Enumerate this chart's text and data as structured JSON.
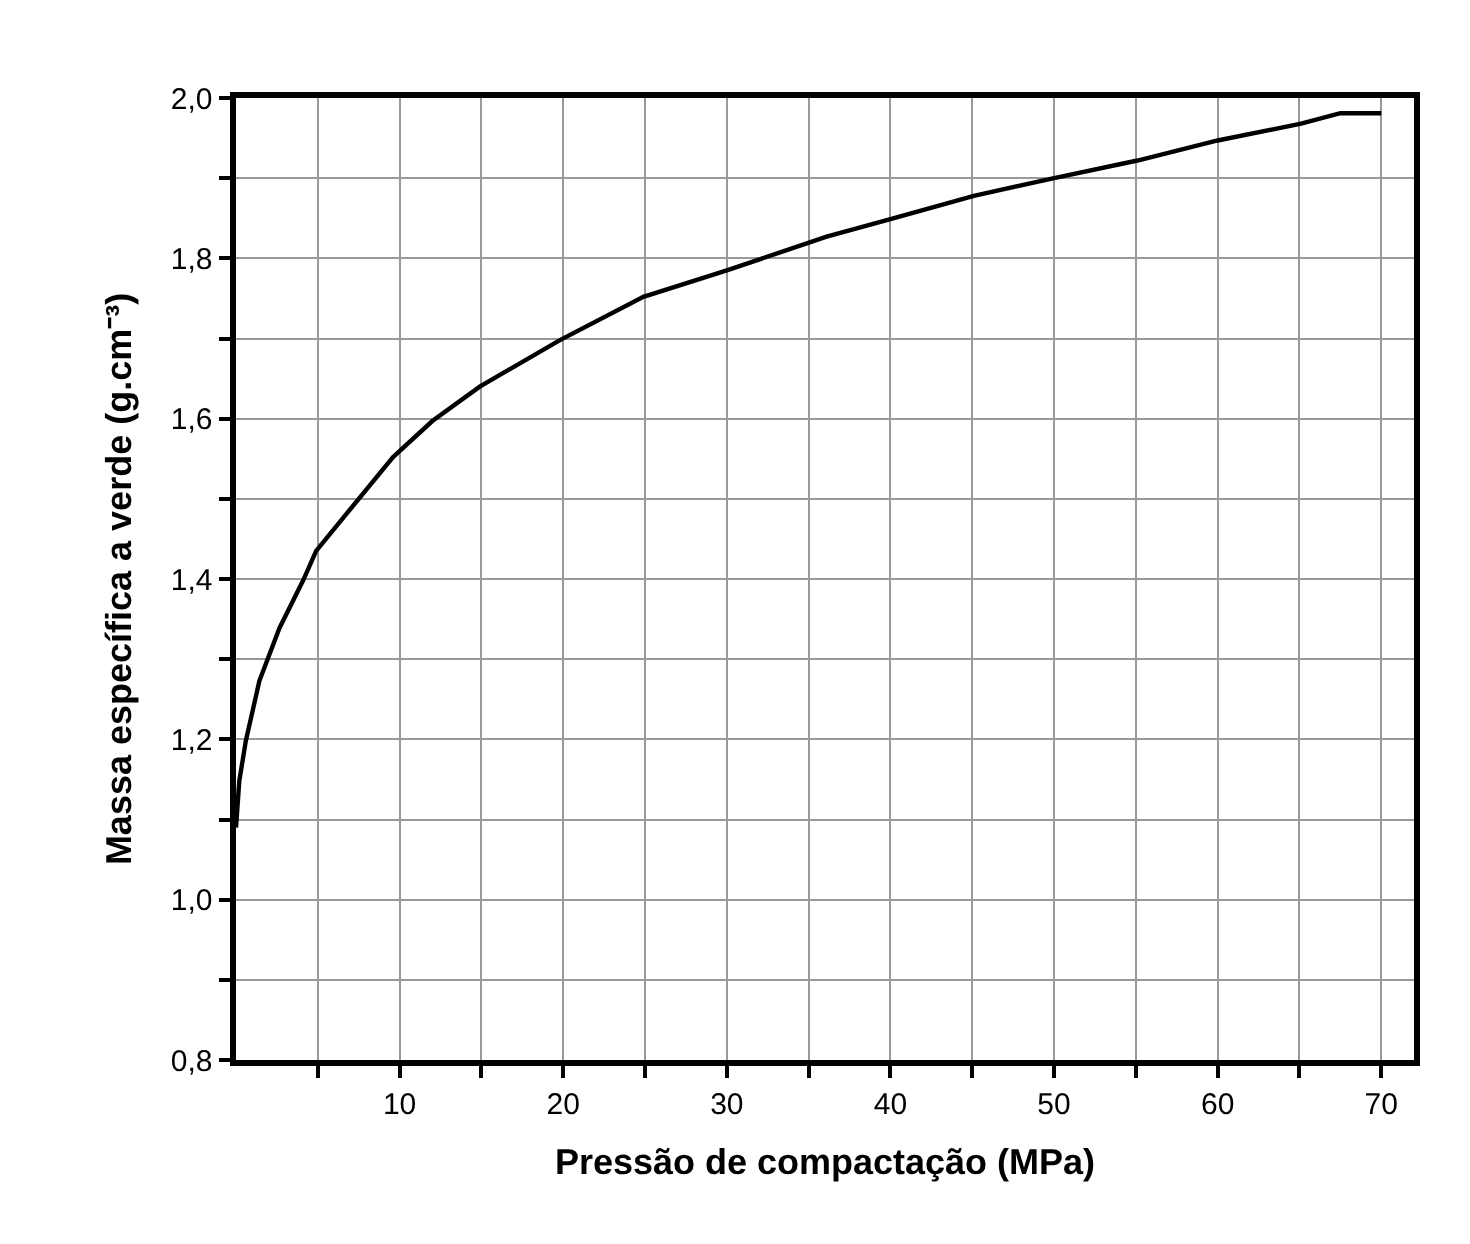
{
  "chart_data": {
    "type": "line",
    "xlabel": "Pressão de compactação (MPa)",
    "ylabel": "Massa específica a verde (g.cm⁻³)",
    "x": [
      0,
      0.2,
      0.6,
      1.43,
      2.66,
      4.1,
      4.9,
      6.7,
      9.6,
      12.0,
      14.9,
      19.8,
      24.9,
      30,
      36.1,
      40,
      45.1,
      50,
      55.1,
      60,
      65.1,
      67.5,
      70
    ],
    "series": [
      {
        "color": "#000000",
        "values": [
          1.09,
          1.148,
          1.198,
          1.273,
          1.339,
          1.398,
          1.435,
          1.48,
          1.552,
          1.597,
          1.64,
          1.698,
          1.752,
          1.785,
          1.827,
          1.849,
          1.878,
          1.9,
          1.922,
          1.947,
          1.968,
          1.981,
          1.981
        ]
      }
    ],
    "xlim": [
      0,
      72
    ],
    "ylim": [
      0.8,
      2.0
    ],
    "xticks": [
      {
        "value": 5,
        "label": null
      },
      10,
      {
        "value": 15,
        "label": null
      },
      20,
      {
        "value": 25,
        "label": null
      },
      30,
      {
        "value": 35,
        "label": null
      },
      40,
      {
        "value": 45,
        "label": null
      },
      50,
      {
        "value": 55,
        "label": null
      },
      60,
      {
        "value": 65,
        "label": null
      },
      70
    ],
    "yticks": [
      {
        "value": 0.8,
        "label": "0,8"
      },
      {
        "value": 0.9,
        "label": null
      },
      {
        "value": 1.0,
        "label": "1,0"
      },
      {
        "value": 1.1,
        "label": null
      },
      {
        "value": 1.2,
        "label": "1,2"
      },
      {
        "value": 1.3,
        "label": null
      },
      {
        "value": 1.4,
        "label": "1,4"
      },
      {
        "value": 1.5,
        "label": null
      },
      {
        "value": 1.6,
        "label": "1,6"
      },
      {
        "value": 1.7,
        "label": null
      },
      {
        "value": 1.8,
        "label": "1,8"
      },
      {
        "value": 1.9,
        "label": null
      },
      {
        "value": 2.0,
        "label": "2,0"
      }
    ],
    "grid": true,
    "legend": false,
    "marker": "none",
    "line_style": "solid"
  }
}
